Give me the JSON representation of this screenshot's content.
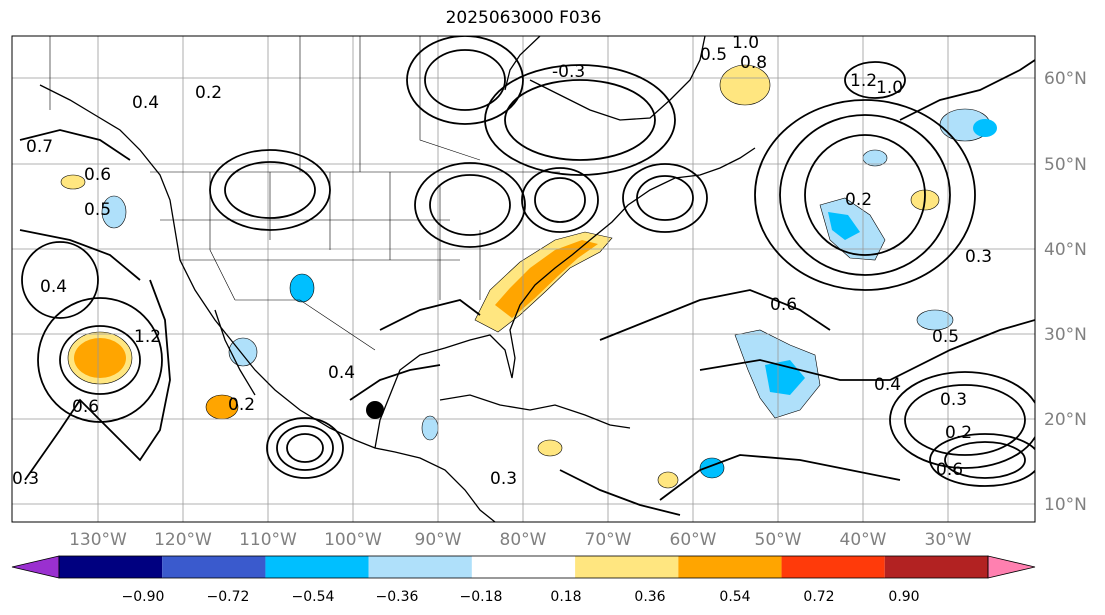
{
  "title": "2025063000 F036",
  "map": {
    "lat_ticks": [
      "60°N",
      "50°N",
      "40°N",
      "30°N",
      "20°N",
      "10°N"
    ],
    "lon_ticks": [
      "130°W",
      "120°W",
      "110°W",
      "100°W",
      "90°W",
      "80°W",
      "70°W",
      "60°W",
      "50°W",
      "40°W",
      "30°W"
    ],
    "contour_labels": [
      "-0.3",
      "1.2",
      "1.0",
      "0.4",
      "0.2",
      "0.7",
      "0.6",
      "0.5",
      "0.4",
      "1.2",
      "0.2",
      "0.4",
      "0.6",
      "0.3",
      "0.5",
      "0.2",
      "0.6",
      "0.3",
      "0.3",
      "0.4",
      "0.6",
      "0.2",
      "0.3",
      "0.5",
      "0.8",
      "1.0"
    ],
    "marker": "storm-center-dot"
  },
  "colorbar": {
    "ticks": [
      "−0.90",
      "−0.72",
      "−0.54",
      "−0.36",
      "−0.18",
      "0.18",
      "0.36",
      "0.54",
      "0.72",
      "0.90"
    ],
    "colors": [
      "#9a30d0",
      "#000080",
      "#3a5acd",
      "#00bfff",
      "#afe0fa",
      "#ffffff",
      "#ffe680",
      "#ffa500",
      "#ff3a0a",
      "#b22222",
      "#ff80b0"
    ]
  }
}
